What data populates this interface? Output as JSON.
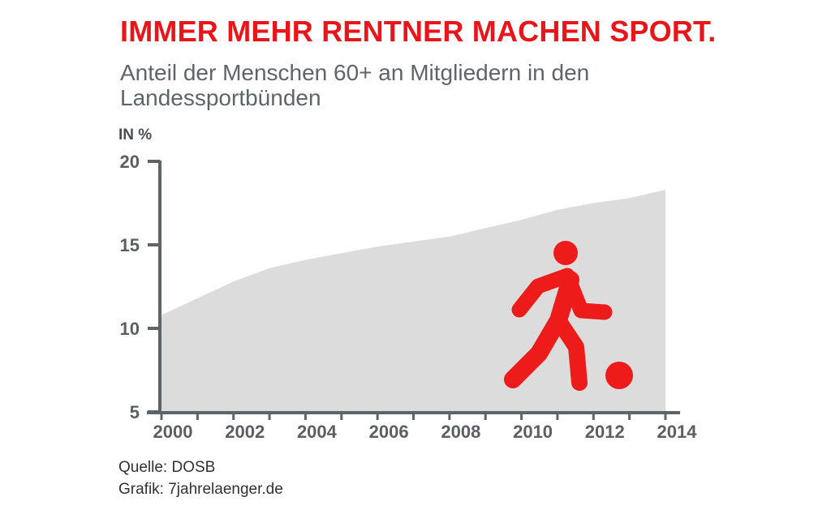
{
  "title": "IMMER MEHR RENTNER MACHEN SPORT.",
  "subtitle": "Anteil der Menschen 60+ an Mitgliedern in den Landessportbünden",
  "source": "Quelle: DOSB",
  "credit": "Grafik: 7jahrelaenger.de",
  "icon": "soccer-player-kicking-ball-icon",
  "colors": {
    "title": "#e8161b",
    "subtitle": "#5e6569",
    "area": "#dcdcdc",
    "axis": "#5f6468",
    "icon": "#ee1b1b"
  },
  "chart_data": {
    "type": "area",
    "title": "",
    "xlabel": "",
    "ylabel": "IN %",
    "x": [
      2000,
      2001,
      2002,
      2003,
      2004,
      2005,
      2006,
      2007,
      2008,
      2009,
      2010,
      2011,
      2012,
      2013,
      2014
    ],
    "values": [
      10.8,
      11.8,
      12.8,
      13.6,
      14.1,
      14.5,
      14.9,
      15.2,
      15.5,
      16.0,
      16.5,
      17.1,
      17.5,
      17.8,
      18.3
    ],
    "xticks": [
      2000,
      2002,
      2004,
      2006,
      2008,
      2010,
      2012,
      2014
    ],
    "yticks": [
      5,
      10,
      15,
      20
    ],
    "xlim": [
      2000,
      2014
    ],
    "ylim": [
      5,
      20
    ],
    "grid": false,
    "legend": "none"
  }
}
